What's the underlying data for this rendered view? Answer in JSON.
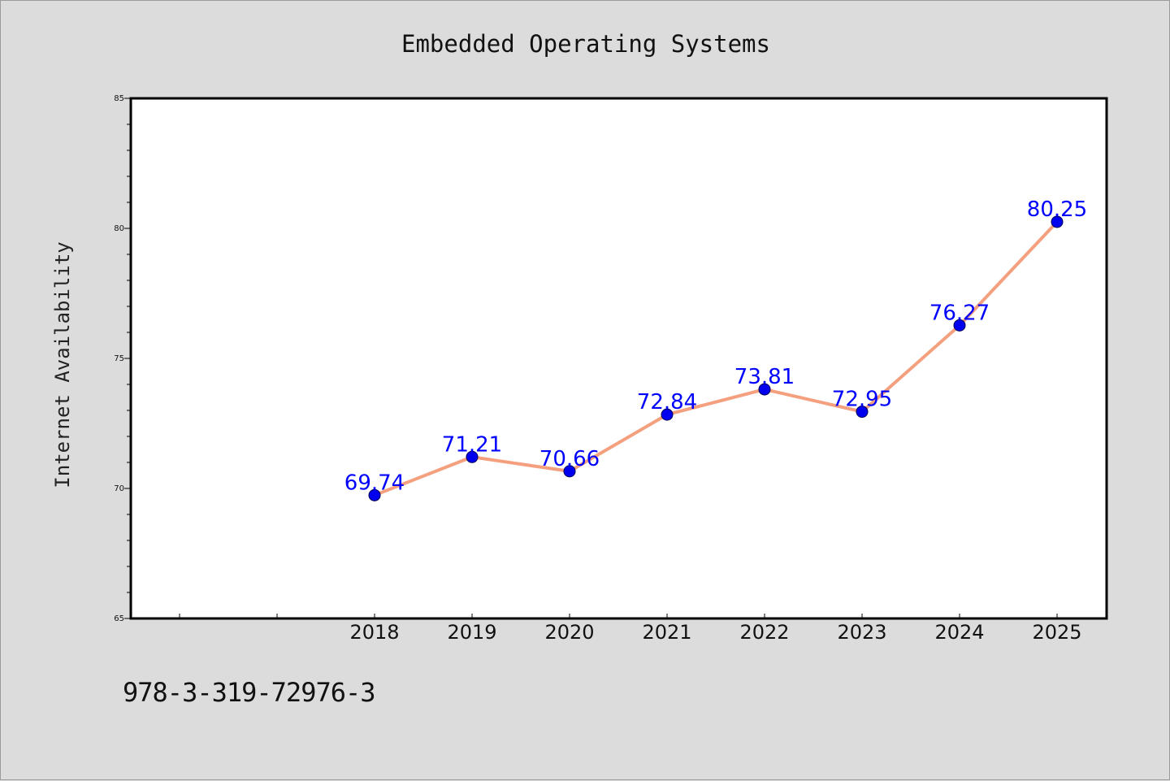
{
  "chart_data": {
    "type": "line",
    "title": "Embedded Operating Systems",
    "xlabel": "",
    "ylabel": "Internet Availability",
    "categories": [
      "2018",
      "2019",
      "2020",
      "2021",
      "2022",
      "2023",
      "2024",
      "2025"
    ],
    "series": [
      {
        "values": [
          69.74,
          71.21,
          70.66,
          72.84,
          73.81,
          72.95,
          76.27,
          80.25
        ],
        "data_labels": [
          "69.74",
          "71.21",
          "70.66",
          "72.84",
          "73.81",
          "72.95",
          "76.27",
          "80.25"
        ]
      }
    ],
    "ylim": [
      65,
      85
    ],
    "yticks": [
      "65",
      "70",
      "75",
      "80",
      "85"
    ],
    "grid": false,
    "legend": "none",
    "colors": {
      "line": "#f4a07f",
      "marker": "#0000ee",
      "label": "#0000ff",
      "plot_bg": "#ffffff",
      "page_bg": "#dcdcdc"
    }
  },
  "footer": {
    "code": "978-3-319-72976-3"
  }
}
